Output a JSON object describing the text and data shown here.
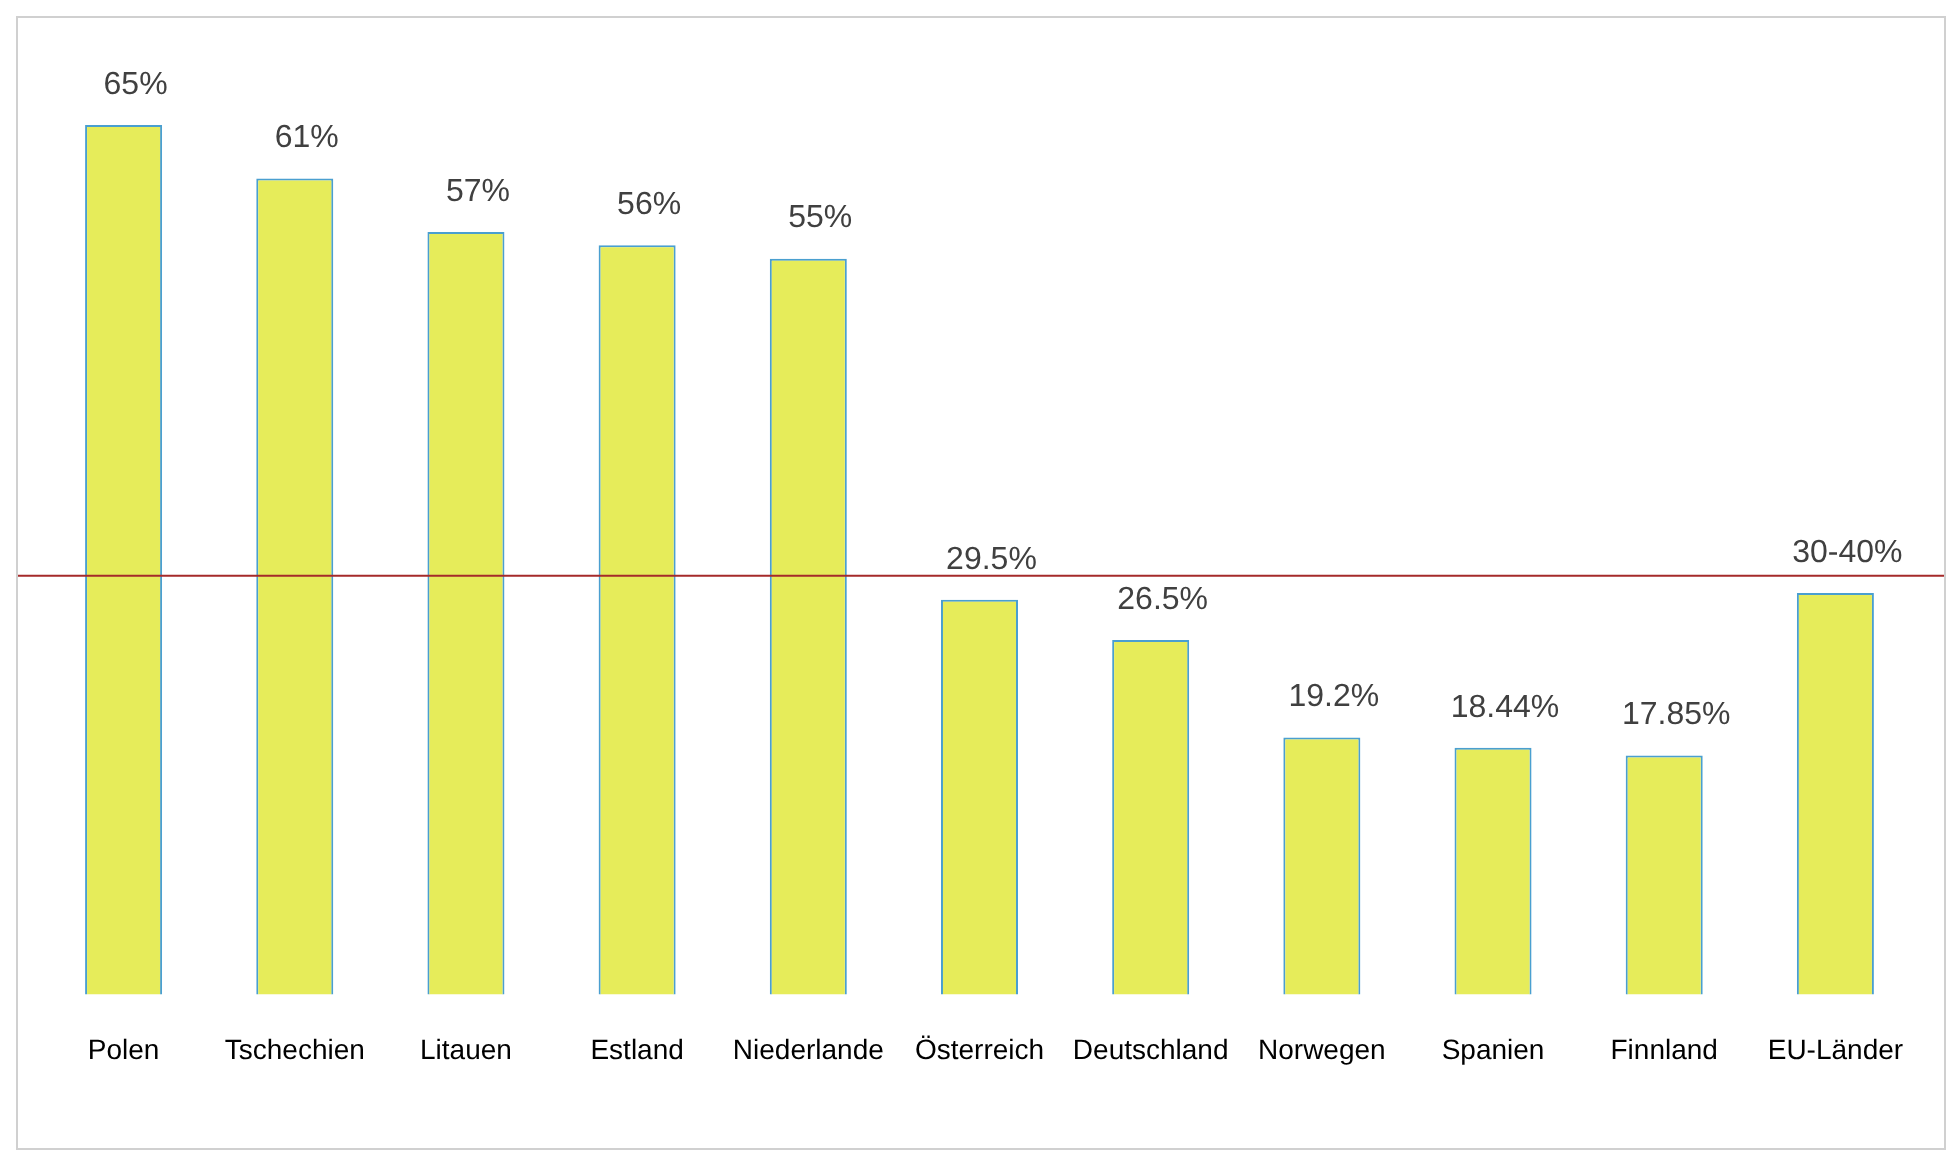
{
  "chart_data": {
    "type": "bar",
    "categories": [
      "Polen",
      "Tschechien",
      "Litauen",
      "Estland",
      "Niederlande",
      "Österreich",
      "Deutschland",
      "Norwegen",
      "Spanien",
      "Finnland",
      "EU-Länder"
    ],
    "values": [
      65,
      61,
      57,
      56,
      55,
      29.5,
      26.5,
      19.2,
      18.44,
      17.85,
      30
    ],
    "value_labels": [
      "65%",
      "61%",
      "57%",
      "56%",
      "55%",
      "29.5%",
      "26.5%",
      "19.2%",
      "18.44%",
      "17.85%",
      "30-40%"
    ],
    "color": "#e6ec5a",
    "grid": false,
    "legend": false,
    "ref_lines": [
      {
        "axis": "y",
        "value": 31.3,
        "color": "#a52a2a"
      }
    ]
  }
}
